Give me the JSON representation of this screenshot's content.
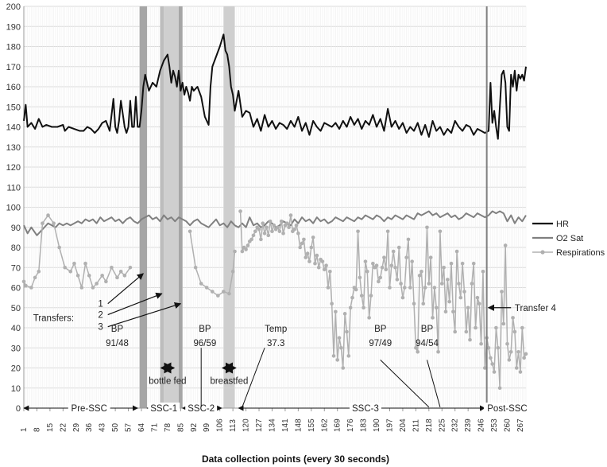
{
  "chart_data": {
    "type": "line",
    "title": "",
    "xlabel": "Data collection points (every 30 seconds)",
    "ylabel": "",
    "xlim": [
      1,
      270
    ],
    "ylim": [
      0,
      200
    ],
    "grid": true,
    "legend_placement": "right",
    "y_ticks": [
      0,
      10,
      20,
      30,
      40,
      50,
      60,
      70,
      80,
      90,
      100,
      110,
      120,
      130,
      140,
      150,
      160,
      170,
      180,
      190,
      200
    ],
    "x_ticks": [
      1,
      8,
      15,
      22,
      29,
      36,
      43,
      50,
      57,
      64,
      71,
      78,
      85,
      92,
      99,
      106,
      113,
      120,
      127,
      134,
      141,
      148,
      155,
      162,
      169,
      176,
      183,
      190,
      197,
      204,
      211,
      218,
      225,
      232,
      239,
      246,
      253,
      260,
      267
    ],
    "series": [
      {
        "name": "HR",
        "color": "#111111",
        "x": [
          1,
          2,
          3,
          5,
          7,
          9,
          11,
          13,
          16,
          19,
          22,
          23,
          25,
          28,
          31,
          33,
          35,
          37,
          39,
          41,
          43,
          45,
          47,
          49,
          50,
          51,
          52,
          53,
          55,
          56,
          57,
          58,
          59,
          60,
          61,
          62,
          63,
          64,
          65,
          66,
          68,
          70,
          72,
          74,
          76,
          78,
          79,
          80,
          81,
          82,
          83,
          84,
          85,
          86,
          87,
          88,
          89,
          90,
          91,
          92,
          94,
          96,
          98,
          100,
          101,
          102,
          104,
          106,
          108,
          109,
          110,
          111,
          112,
          113,
          114,
          116,
          118,
          120,
          122,
          124,
          126,
          128,
          130,
          132,
          134,
          136,
          138,
          140,
          142,
          144,
          146,
          148,
          150,
          152,
          154,
          156,
          158,
          160,
          162,
          164,
          166,
          168,
          170,
          172,
          174,
          176,
          178,
          180,
          182,
          184,
          186,
          188,
          190,
          192,
          194,
          196,
          198,
          200,
          202,
          204,
          206,
          208,
          210,
          212,
          214,
          216,
          218,
          220,
          222,
          224,
          226,
          228,
          230,
          232,
          234,
          236,
          238,
          240,
          242,
          244,
          246,
          248,
          250,
          251,
          252,
          253,
          254,
          255,
          256,
          257,
          258,
          259,
          260,
          261,
          262,
          263,
          264,
          265,
          266,
          267,
          268,
          269,
          270
        ],
        "y": [
          143,
          151,
          140,
          142,
          139,
          144,
          140,
          141,
          140,
          140,
          141,
          138,
          140,
          139,
          138,
          138,
          140,
          139,
          137,
          139,
          142,
          143,
          138,
          154,
          140,
          137,
          143,
          153,
          140,
          137,
          140,
          153,
          140,
          140,
          155,
          140,
          140,
          148,
          160,
          166,
          158,
          162,
          160,
          168,
          173,
          176,
          170,
          162,
          168,
          165,
          160,
          168,
          158,
          162,
          156,
          160,
          157,
          153,
          160,
          158,
          160,
          155,
          145,
          141,
          160,
          170,
          175,
          180,
          186,
          178,
          176,
          170,
          160,
          156,
          148,
          158,
          145,
          148,
          147,
          140,
          144,
          138,
          146,
          140,
          143,
          139,
          142,
          141,
          139,
          143,
          140,
          145,
          138,
          142,
          136,
          143,
          140,
          138,
          142,
          141,
          140,
          142,
          139,
          143,
          140,
          145,
          141,
          144,
          139,
          143,
          141,
          146,
          140,
          144,
          138,
          149,
          140,
          143,
          139,
          142,
          137,
          140,
          138,
          142,
          136,
          141,
          135,
          143,
          138,
          140,
          136,
          139,
          137,
          143,
          140,
          138,
          141,
          140,
          136,
          139,
          138,
          137,
          138,
          162,
          142,
          148,
          140,
          134,
          150,
          166,
          168,
          162,
          140,
          138,
          166,
          160,
          168,
          158,
          166,
          164,
          166,
          163,
          170
        ]
      },
      {
        "name": "O2 Sat",
        "color": "#808080",
        "x": [
          1,
          3,
          5,
          8,
          10,
          12,
          14,
          16,
          18,
          20,
          22,
          24,
          26,
          28,
          30,
          32,
          34,
          36,
          38,
          40,
          42,
          44,
          46,
          48,
          50,
          52,
          54,
          56,
          58,
          60,
          62,
          64,
          66,
          68,
          70,
          72,
          74,
          76,
          78,
          80,
          82,
          84,
          86,
          88,
          90,
          92,
          94,
          96,
          98,
          100,
          102,
          104,
          106,
          108,
          110,
          112,
          114,
          116,
          118,
          120,
          122,
          124,
          126,
          128,
          130,
          132,
          134,
          136,
          138,
          140,
          142,
          144,
          146,
          148,
          150,
          152,
          154,
          156,
          158,
          160,
          162,
          164,
          166,
          168,
          170,
          172,
          174,
          176,
          178,
          180,
          182,
          184,
          186,
          188,
          190,
          192,
          194,
          196,
          198,
          200,
          202,
          204,
          206,
          208,
          210,
          212,
          214,
          216,
          218,
          220,
          222,
          224,
          226,
          228,
          230,
          232,
          234,
          236,
          238,
          240,
          242,
          244,
          246,
          248,
          250,
          252,
          254,
          256,
          258,
          260,
          262,
          264,
          266,
          268,
          270
        ],
        "y": [
          91,
          87,
          90,
          86,
          88,
          90,
          92,
          91,
          90,
          92,
          91,
          92,
          91,
          92,
          93,
          92,
          94,
          93,
          94,
          92,
          95,
          93,
          94,
          95,
          93,
          94,
          92,
          94,
          95,
          93,
          92,
          94,
          95,
          96,
          94,
          95,
          93,
          96,
          94,
          95,
          93,
          95,
          94,
          93,
          91,
          93,
          94,
          92,
          91,
          90,
          92,
          94,
          91,
          92,
          90,
          93,
          91,
          90,
          92,
          90,
          95,
          91,
          92,
          90,
          91,
          93,
          92,
          90,
          91,
          93,
          92,
          91,
          94,
          92,
          95,
          93,
          94,
          92,
          95,
          93,
          94,
          92,
          93,
          95,
          94,
          93,
          95,
          94,
          93,
          95,
          94,
          96,
          95,
          94,
          96,
          95,
          93,
          95,
          94,
          96,
          95,
          94,
          96,
          95,
          94,
          97,
          96,
          97,
          98,
          96,
          97,
          95,
          96,
          97,
          95,
          96,
          94,
          95,
          97,
          96,
          95,
          97,
          96,
          95,
          96,
          98,
          97,
          98,
          97,
          93,
          96,
          92,
          95,
          93,
          96
        ]
      },
      {
        "name": "Respirations",
        "color": "#b0b0b0",
        "segments": [
          {
            "x": [
              1,
              2,
              5,
              7,
              9,
              11,
              14,
              17,
              20,
              23,
              26,
              28,
              30,
              32,
              34,
              36,
              38,
              40,
              43,
              45,
              48,
              51,
              53,
              55,
              58
            ],
            "y": [
              63,
              61,
              60,
              65,
              68,
              92,
              96,
              92,
              80,
              70,
              68,
              72,
              66,
              60,
              72,
              66,
              60,
              62,
              66,
              63,
              70,
              65,
              68,
              66,
              70
            ]
          },
          {
            "x": [
              90,
              93,
              96,
              99,
              102,
              105,
              108,
              111,
              113,
              114
            ],
            "y": [
              88,
              70,
              62,
              60,
              58,
              56,
              58,
              57,
              68,
              78
            ]
          },
          {
            "x": [
              117,
              118,
              119,
              120,
              121,
              122,
              123,
              124,
              125,
              126,
              127,
              128,
              129,
              130,
              131,
              132,
              133,
              134,
              135,
              136,
              137,
              138,
              139,
              140,
              141,
              142,
              143,
              144,
              145,
              146,
              147,
              148,
              149,
              150,
              151,
              152,
              153,
              154,
              155,
              156,
              157,
              158,
              159,
              160,
              161,
              162,
              163,
              164,
              165,
              166,
              167,
              168,
              169,
              170,
              171,
              172,
              173,
              174,
              175,
              176,
              177,
              178,
              179,
              180,
              181,
              182,
              183,
              184,
              185,
              186,
              187,
              188,
              189,
              190,
              191,
              192,
              193,
              194,
              195,
              196,
              197,
              198,
              199,
              200,
              201,
              202,
              203,
              204,
              205,
              206,
              207,
              208,
              209,
              210,
              211,
              212,
              213,
              214,
              215,
              216,
              217,
              218,
              219,
              220,
              221,
              222,
              223,
              224,
              225,
              226,
              227,
              228,
              229,
              230,
              231,
              232,
              233,
              234,
              235,
              236,
              237,
              238,
              239,
              240,
              241,
              242,
              243,
              244,
              245,
              246,
              247,
              248,
              249,
              250,
              251,
              252,
              253,
              254,
              255,
              256,
              257,
              258,
              259,
              260,
              261,
              262,
              263,
              264,
              265,
              266,
              267,
              268,
              269,
              270
            ],
            "y": [
              98,
              78,
              80,
              79,
              81,
              83,
              84,
              86,
              88,
              90,
              89,
              84,
              92,
              87,
              90,
              86,
              93,
              88,
              91,
              89,
              90,
              88,
              93,
              87,
              91,
              92,
              90,
              96,
              88,
              89,
              91,
              87,
              80,
              82,
              84,
              75,
              77,
              73,
              80,
              85,
              72,
              76,
              70,
              74,
              73,
              69,
              71,
              60,
              68,
              52,
              26,
              48,
              24,
              35,
              30,
              20,
              47,
              38,
              26,
              50,
              55,
              60,
              59,
              88,
              65,
              56,
              50,
              73,
              68,
              45,
              56,
              72,
              70,
              71,
              63,
              65,
              70,
              75,
              69,
              88,
              60,
              71,
              78,
              70,
              64,
              80,
              62,
              55,
              60,
              75,
              84,
              60,
              73,
              52,
              30,
              28,
              66,
              68,
              52,
              60,
              90,
              62,
              75,
              45,
              60,
              50,
              28,
              88,
              62,
              70,
              48,
              64,
              53,
              72,
              48,
              38,
              78,
              62,
              55,
              72,
              58,
              38,
              50,
              34,
              62,
              72,
              40,
              55,
              52,
              32,
              68,
              20,
              35,
              30,
              25,
              22,
              18,
              40,
              30,
              10,
              58,
              42,
              81,
              32,
              24,
              28,
              45,
              38,
              20,
              28,
              18,
              40,
              25,
              27
            ]
          }
        ]
      }
    ],
    "phase_bars": [
      {
        "start": 63,
        "end": 67,
        "color": "#a6a6a6"
      },
      {
        "start": 74,
        "end": 76,
        "color": "#bdbdbd"
      },
      {
        "start": 76,
        "end": 84,
        "color": "#cfcfcf"
      },
      {
        "start": 84,
        "end": 86,
        "color": "#a6a6a6"
      },
      {
        "start": 108,
        "end": 114,
        "color": "#cfcfcf"
      }
    ],
    "vertical_line": {
      "x": 249,
      "color": "#808080"
    },
    "phases": [
      {
        "label": "Pre-SSC",
        "from": 1,
        "to": 62,
        "label_at": 36
      },
      {
        "label": "SSC-1",
        "from": 67,
        "to": 84,
        "label_at": 76
      },
      {
        "label": "SSC-2",
        "from": 86,
        "to": 107,
        "label_at": 96
      },
      {
        "label": "SSC-3",
        "from": 116,
        "to": 248,
        "label_at": 184
      },
      {
        "label": "Post-SSC",
        "from": 249,
        "to": 270,
        "label_at": 260
      }
    ],
    "annotations": [
      {
        "label": "BP",
        "value": "91/48",
        "at_x": 51,
        "at_y": 38
      },
      {
        "label": "BP",
        "value": "96/59",
        "at_x": 98,
        "at_y": 38
      },
      {
        "label": "Temp",
        "value": "37.3",
        "at_x": 136,
        "at_y": 38
      },
      {
        "label": "BP",
        "value": "97/49",
        "at_x": 192,
        "at_y": 38
      },
      {
        "label": "BP",
        "value": "94/54",
        "at_x": 217,
        "at_y": 38
      },
      {
        "label": "bottle fed",
        "at_x": 78
      },
      {
        "label": "breastfed",
        "at_x": 111
      }
    ],
    "transfers": {
      "label": "Transfers:",
      "items": [
        {
          "label": "1",
          "arrow_to_x": 65,
          "arrow_to_y": 67
        },
        {
          "label": "2",
          "arrow_to_x": 75,
          "arrow_to_y": 57
        },
        {
          "label": "3",
          "arrow_to_x": 85,
          "arrow_to_y": 52
        }
      ],
      "transfer4": {
        "label": "Transfer 4",
        "arrow_to_x": 249,
        "arrow_to_y": 50
      }
    }
  }
}
